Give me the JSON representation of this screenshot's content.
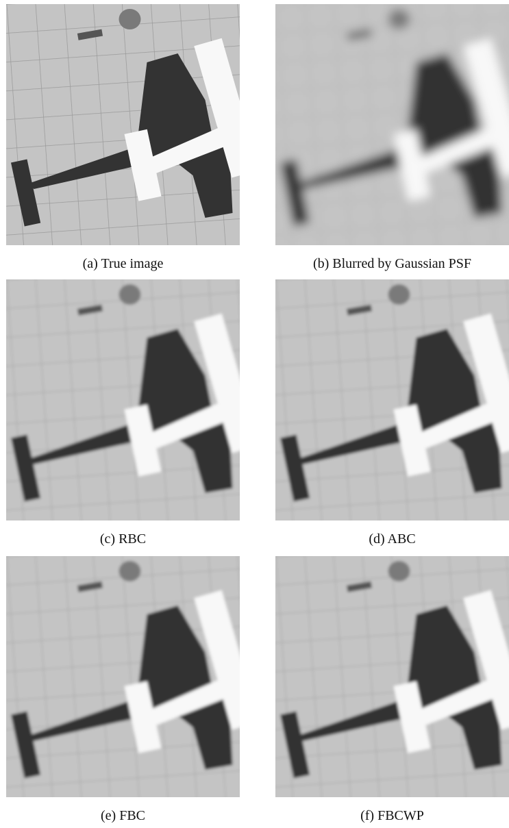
{
  "figure": {
    "panels": [
      {
        "caption": "(a) True image"
      },
      {
        "caption": "(b) Blurred by Gaussian PSF"
      },
      {
        "caption": "(c) RBC"
      },
      {
        "caption": "(d) ABC"
      },
      {
        "caption": "(e) FBC"
      },
      {
        "caption": "(f) FBCWP"
      }
    ]
  }
}
